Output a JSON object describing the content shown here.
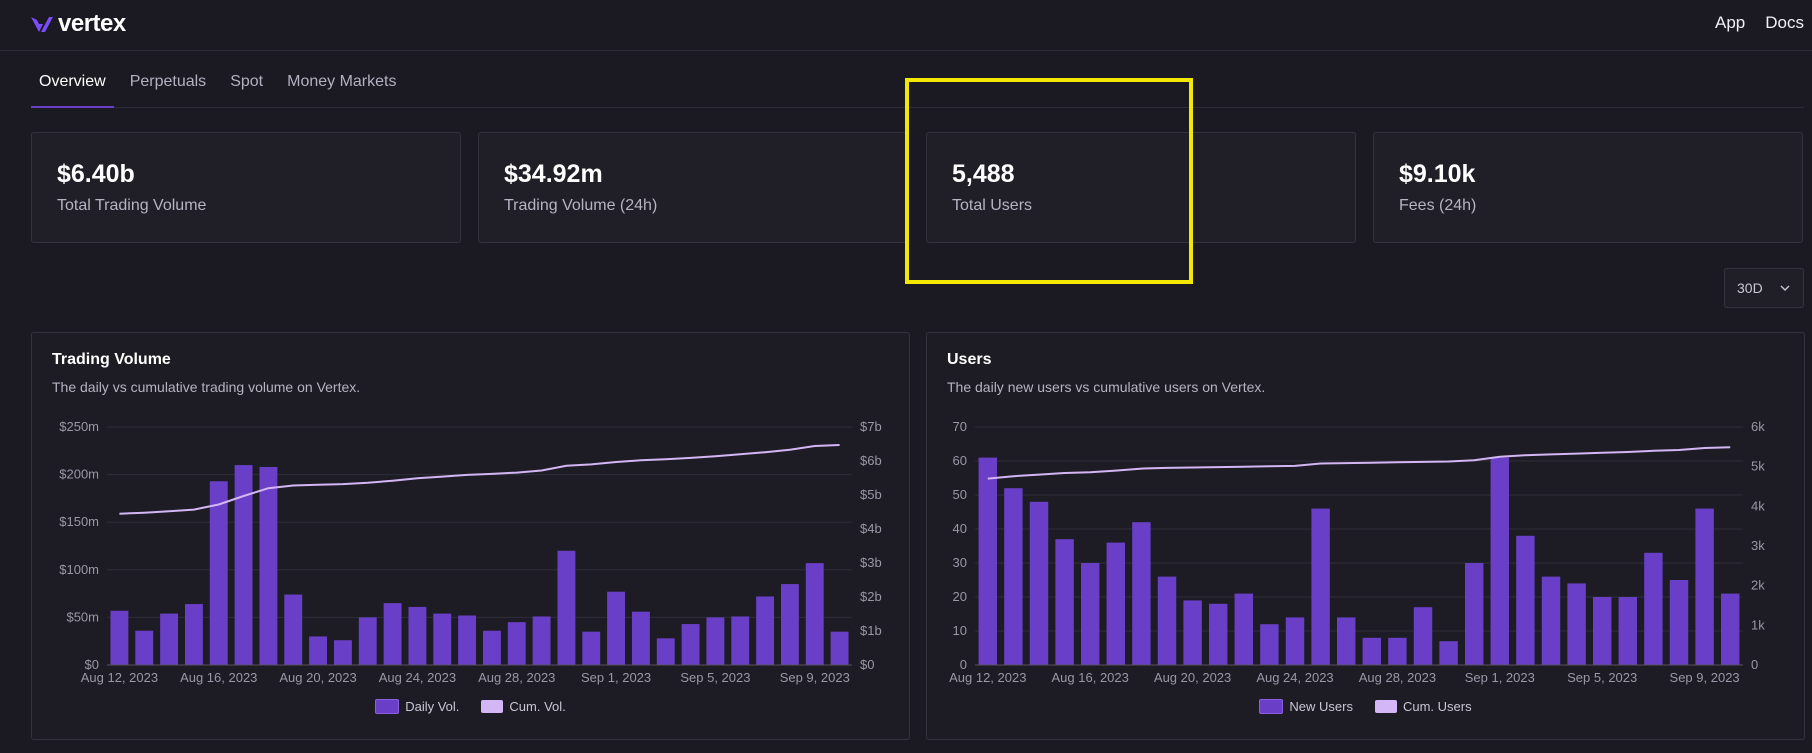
{
  "brand": {
    "name": "vertex",
    "color": "#7c4dff"
  },
  "nav": {
    "app_label": "App",
    "docs_label": "Docs"
  },
  "tabs": [
    {
      "label": "Overview",
      "active": true
    },
    {
      "label": "Perpetuals",
      "active": false
    },
    {
      "label": "Spot",
      "active": false
    },
    {
      "label": "Money Markets",
      "active": false
    }
  ],
  "stats": [
    {
      "value": "$6.40b",
      "label": "Total Trading Volume"
    },
    {
      "value": "$34.92m",
      "label": "Trading Volume (24h)"
    },
    {
      "value": "5,488",
      "label": "Total Users"
    },
    {
      "value": "$9.10k",
      "label": "Fees (24h)"
    }
  ],
  "range_select": {
    "value": "30D"
  },
  "colors": {
    "bar": "#6a3fc7",
    "line": "#d2b6f5",
    "grid": "#2f2d3a",
    "highlight": "#f5e800"
  },
  "chart_data": [
    {
      "type": "bar+line",
      "title": "Trading Volume",
      "subtitle": "The daily vs cumulative trading volume on Vertex.",
      "x_tick_labels": [
        "Aug 12, 2023",
        "Aug 16, 2023",
        "Aug 20, 2023",
        "Aug 24, 2023",
        "Aug 28, 2023",
        "Sep 1, 2023",
        "Sep 5, 2023",
        "Sep 9, 2023"
      ],
      "left_axis": {
        "ticks": [
          0,
          50,
          100,
          150,
          200,
          250
        ],
        "tick_labels": [
          "$0",
          "$50m",
          "$100m",
          "$150m",
          "$200m",
          "$250m"
        ],
        "max": 250
      },
      "right_axis": {
        "ticks": [
          0,
          1,
          2,
          3,
          4,
          5,
          6,
          7
        ],
        "tick_labels": [
          "$0",
          "$1b",
          "$2b",
          "$3b",
          "$4b",
          "$5b",
          "$6b",
          "$7b"
        ],
        "max": 7
      },
      "series": [
        {
          "name": "Daily Vol.",
          "kind": "bar",
          "axis": "left",
          "values": [
            57,
            36,
            54,
            64,
            193,
            210,
            208,
            74,
            30,
            26,
            50,
            65,
            61,
            54,
            52,
            36,
            45,
            51,
            120,
            35,
            77,
            56,
            28,
            43,
            50,
            51,
            72,
            85,
            107,
            35
          ]
        },
        {
          "name": "Cum. Vol.",
          "kind": "line",
          "axis": "right",
          "values": [
            4.45,
            4.48,
            4.52,
            4.57,
            4.72,
            4.97,
            5.2,
            5.28,
            5.3,
            5.32,
            5.36,
            5.42,
            5.49,
            5.54,
            5.59,
            5.62,
            5.66,
            5.72,
            5.86,
            5.9,
            5.97,
            6.02,
            6.05,
            6.09,
            6.14,
            6.2,
            6.26,
            6.33,
            6.44,
            6.47
          ]
        }
      ]
    },
    {
      "type": "bar+line",
      "title": "Users",
      "subtitle": "The daily new users vs cumulative users on Vertex.",
      "x_tick_labels": [
        "Aug 12, 2023",
        "Aug 16, 2023",
        "Aug 20, 2023",
        "Aug 24, 2023",
        "Aug 28, 2023",
        "Sep 1, 2023",
        "Sep 5, 2023",
        "Sep 9, 2023"
      ],
      "left_axis": {
        "ticks": [
          0,
          10,
          20,
          30,
          40,
          50,
          60,
          70
        ],
        "tick_labels": [
          "0",
          "10",
          "20",
          "30",
          "40",
          "50",
          "60",
          "70"
        ],
        "max": 70
      },
      "right_axis": {
        "ticks": [
          0,
          1,
          2,
          3,
          4,
          5,
          6
        ],
        "tick_labels": [
          "0",
          "1k",
          "2k",
          "3k",
          "4k",
          "5k",
          "6k"
        ],
        "max": 6
      },
      "series": [
        {
          "name": "New Users",
          "kind": "bar",
          "axis": "left",
          "values": [
            61,
            52,
            48,
            37,
            30,
            36,
            42,
            26,
            19,
            18,
            21,
            12,
            14,
            46,
            14,
            8,
            8,
            17,
            7,
            30,
            61,
            38,
            26,
            24,
            20,
            20,
            33,
            25,
            46,
            21
          ]
        },
        {
          "name": "Cum. Users",
          "kind": "line",
          "axis": "right",
          "values": [
            4.7,
            4.76,
            4.8,
            4.84,
            4.86,
            4.9,
            4.95,
            4.97,
            4.98,
            4.99,
            5.0,
            5.01,
            5.02,
            5.08,
            5.09,
            5.1,
            5.11,
            5.12,
            5.13,
            5.16,
            5.25,
            5.29,
            5.31,
            5.33,
            5.35,
            5.37,
            5.4,
            5.42,
            5.47,
            5.49
          ]
        }
      ]
    }
  ]
}
